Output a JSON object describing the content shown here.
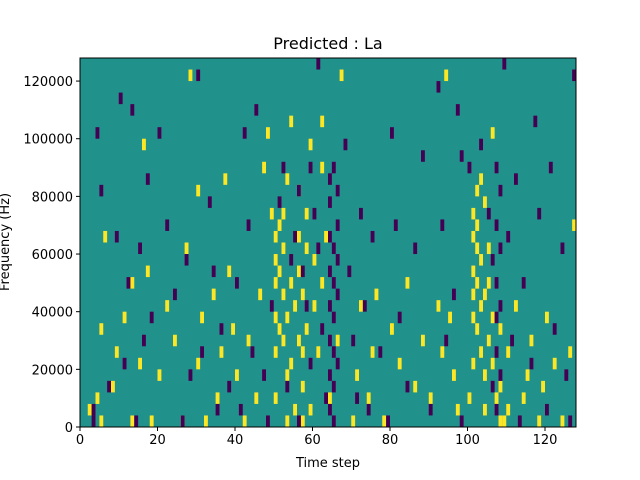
{
  "chart_data": {
    "type": "heatmap",
    "title": "Predicted : La",
    "xlabel": "Time step",
    "ylabel": "Frequency (Hz)",
    "xlim": [
      0,
      128
    ],
    "ylim": [
      0,
      128000
    ],
    "xticks": [
      0,
      20,
      40,
      60,
      80,
      100,
      120
    ],
    "xtick_labels": [
      "0",
      "20",
      "40",
      "60",
      "80",
      "100",
      "120"
    ],
    "yticks": [
      0,
      20000,
      40000,
      60000,
      80000,
      100000,
      120000
    ],
    "ytick_labels": [
      "0",
      "20000",
      "40000",
      "60000",
      "80000",
      "100000",
      "120000"
    ],
    "colormap": "viridis",
    "colors": {
      "background": "#21918c",
      "high": "#fde725",
      "low": "#440154"
    },
    "grid": false,
    "notes": "Three-level map: most cells mid-value (teal); sparse high (yellow) and low (purple) cells as sampled below.",
    "cell": {
      "dx": 1,
      "dy": 4000
    },
    "cells_high": [
      [
        2,
        4000
      ],
      [
        4,
        8000
      ],
      [
        5,
        0
      ],
      [
        5,
        32000
      ],
      [
        6,
        64000
      ],
      [
        8,
        12000
      ],
      [
        9,
        24000
      ],
      [
        11,
        36000
      ],
      [
        13,
        0
      ],
      [
        13,
        48000
      ],
      [
        15,
        20000
      ],
      [
        16,
        96000
      ],
      [
        17,
        52000
      ],
      [
        18,
        0
      ],
      [
        20,
        16000
      ],
      [
        22,
        40000
      ],
      [
        24,
        28000
      ],
      [
        26,
        0
      ],
      [
        27,
        60000
      ],
      [
        28,
        120000
      ],
      [
        30,
        20000
      ],
      [
        30,
        80000
      ],
      [
        31,
        36000
      ],
      [
        32,
        0
      ],
      [
        34,
        44000
      ],
      [
        35,
        8000
      ],
      [
        36,
        24000
      ],
      [
        37,
        84000
      ],
      [
        38,
        52000
      ],
      [
        39,
        32000
      ],
      [
        40,
        16000
      ],
      [
        42,
        0
      ],
      [
        43,
        28000
      ],
      [
        45,
        8000
      ],
      [
        46,
        44000
      ],
      [
        47,
        88000
      ],
      [
        48,
        100000
      ],
      [
        49,
        72000
      ],
      [
        50,
        8000
      ],
      [
        50,
        24000
      ],
      [
        50,
        36000
      ],
      [
        50,
        48000
      ],
      [
        50,
        56000
      ],
      [
        50,
        64000
      ],
      [
        51,
        68000
      ],
      [
        51,
        32000
      ],
      [
        51,
        52000
      ],
      [
        52,
        44000
      ],
      [
        52,
        60000
      ],
      [
        52,
        28000
      ],
      [
        52,
        72000
      ],
      [
        53,
        0
      ],
      [
        53,
        16000
      ],
      [
        53,
        36000
      ],
      [
        53,
        84000
      ],
      [
        54,
        104000
      ],
      [
        54,
        48000
      ],
      [
        54,
        20000
      ],
      [
        55,
        4000
      ],
      [
        55,
        40000
      ],
      [
        56,
        64000
      ],
      [
        56,
        52000
      ],
      [
        56,
        28000
      ],
      [
        56,
        80000
      ],
      [
        57,
        0
      ],
      [
        57,
        12000
      ],
      [
        57,
        24000
      ],
      [
        57,
        44000
      ],
      [
        58,
        60000
      ],
      [
        58,
        72000
      ],
      [
        58,
        32000
      ],
      [
        59,
        4000
      ],
      [
        59,
        96000
      ],
      [
        60,
        40000
      ],
      [
        60,
        56000
      ],
      [
        61,
        24000
      ],
      [
        62,
        104000
      ],
      [
        62,
        88000
      ],
      [
        62,
        48000
      ],
      [
        63,
        64000
      ],
      [
        64,
        8000
      ],
      [
        66,
        28000
      ],
      [
        67,
        120000
      ],
      [
        70,
        0
      ],
      [
        71,
        16000
      ],
      [
        72,
        40000
      ],
      [
        74,
        8000
      ],
      [
        75,
        24000
      ],
      [
        76,
        44000
      ],
      [
        78,
        0
      ],
      [
        80,
        32000
      ],
      [
        82,
        20000
      ],
      [
        84,
        48000
      ],
      [
        86,
        12000
      ],
      [
        88,
        28000
      ],
      [
        90,
        8000
      ],
      [
        92,
        40000
      ],
      [
        93,
        24000
      ],
      [
        94,
        120000
      ],
      [
        95,
        36000
      ],
      [
        96,
        16000
      ],
      [
        97,
        4000
      ],
      [
        100,
        8000
      ],
      [
        101,
        20000
      ],
      [
        101,
        36000
      ],
      [
        101,
        44000
      ],
      [
        101,
        52000
      ],
      [
        101,
        64000
      ],
      [
        101,
        72000
      ],
      [
        102,
        32000
      ],
      [
        102,
        48000
      ],
      [
        102,
        60000
      ],
      [
        102,
        68000
      ],
      [
        102,
        80000
      ],
      [
        103,
        24000
      ],
      [
        103,
        40000
      ],
      [
        103,
        56000
      ],
      [
        103,
        84000
      ],
      [
        104,
        4000
      ],
      [
        104,
        16000
      ],
      [
        104,
        44000
      ],
      [
        104,
        76000
      ],
      [
        105,
        28000
      ],
      [
        105,
        48000
      ],
      [
        105,
        60000
      ],
      [
        106,
        20000
      ],
      [
        106,
        36000
      ],
      [
        106,
        100000
      ],
      [
        107,
        8000
      ],
      [
        108,
        0
      ],
      [
        108,
        12000
      ],
      [
        108,
        32000
      ],
      [
        109,
        0
      ],
      [
        110,
        4000
      ],
      [
        110,
        24000
      ],
      [
        112,
        40000
      ],
      [
        114,
        8000
      ],
      [
        115,
        16000
      ],
      [
        116,
        28000
      ],
      [
        118,
        0
      ],
      [
        119,
        12000
      ],
      [
        120,
        36000
      ],
      [
        122,
        20000
      ],
      [
        124,
        0
      ],
      [
        126,
        24000
      ],
      [
        127,
        68000
      ],
      [
        128,
        16000
      ]
    ],
    "cells_low": [
      [
        3,
        0
      ],
      [
        3,
        4000
      ],
      [
        4,
        100000
      ],
      [
        5,
        80000
      ],
      [
        7,
        12000
      ],
      [
        9,
        64000
      ],
      [
        10,
        112000
      ],
      [
        11,
        20000
      ],
      [
        12,
        48000
      ],
      [
        13,
        108000
      ],
      [
        14,
        0
      ],
      [
        15,
        60000
      ],
      [
        16,
        28000
      ],
      [
        17,
        84000
      ],
      [
        18,
        36000
      ],
      [
        20,
        100000
      ],
      [
        22,
        68000
      ],
      [
        24,
        44000
      ],
      [
        26,
        0
      ],
      [
        27,
        56000
      ],
      [
        28,
        16000
      ],
      [
        30,
        120000
      ],
      [
        31,
        24000
      ],
      [
        33,
        76000
      ],
      [
        34,
        52000
      ],
      [
        35,
        4000
      ],
      [
        36,
        32000
      ],
      [
        38,
        12000
      ],
      [
        40,
        48000
      ],
      [
        41,
        4000
      ],
      [
        42,
        100000
      ],
      [
        43,
        68000
      ],
      [
        44,
        24000
      ],
      [
        45,
        108000
      ],
      [
        47,
        16000
      ],
      [
        48,
        0
      ],
      [
        49,
        40000
      ],
      [
        51,
        76000
      ],
      [
        52,
        88000
      ],
      [
        53,
        12000
      ],
      [
        54,
        56000
      ],
      [
        55,
        64000
      ],
      [
        56,
        80000
      ],
      [
        56,
        0
      ],
      [
        57,
        52000
      ],
      [
        58,
        40000
      ],
      [
        59,
        88000
      ],
      [
        59,
        20000
      ],
      [
        60,
        72000
      ],
      [
        61,
        60000
      ],
      [
        61,
        124000
      ],
      [
        62,
        32000
      ],
      [
        63,
        8000
      ],
      [
        64,
        84000
      ],
      [
        64,
        76000
      ],
      [
        64,
        64000
      ],
      [
        64,
        52000
      ],
      [
        64,
        40000
      ],
      [
        64,
        28000
      ],
      [
        64,
        16000
      ],
      [
        64,
        4000
      ],
      [
        65,
        88000
      ],
      [
        65,
        60000
      ],
      [
        65,
        48000
      ],
      [
        65,
        36000
      ],
      [
        65,
        24000
      ],
      [
        65,
        12000
      ],
      [
        65,
        0
      ],
      [
        66,
        80000
      ],
      [
        66,
        68000
      ],
      [
        66,
        56000
      ],
      [
        66,
        44000
      ],
      [
        66,
        20000
      ],
      [
        68,
        96000
      ],
      [
        69,
        52000
      ],
      [
        70,
        28000
      ],
      [
        71,
        8000
      ],
      [
        72,
        72000
      ],
      [
        73,
        40000
      ],
      [
        74,
        4000
      ],
      [
        75,
        64000
      ],
      [
        77,
        24000
      ],
      [
        79,
        0
      ],
      [
        80,
        100000
      ],
      [
        81,
        68000
      ],
      [
        82,
        36000
      ],
      [
        84,
        12000
      ],
      [
        86,
        60000
      ],
      [
        88,
        92000
      ],
      [
        90,
        4000
      ],
      [
        92,
        116000
      ],
      [
        93,
        68000
      ],
      [
        94,
        28000
      ],
      [
        96,
        44000
      ],
      [
        97,
        108000
      ],
      [
        98,
        0
      ],
      [
        98,
        92000
      ],
      [
        100,
        88000
      ],
      [
        103,
        96000
      ],
      [
        105,
        72000
      ],
      [
        106,
        56000
      ],
      [
        106,
        12000
      ],
      [
        107,
        88000
      ],
      [
        107,
        68000
      ],
      [
        107,
        48000
      ],
      [
        107,
        36000
      ],
      [
        107,
        24000
      ],
      [
        107,
        4000
      ],
      [
        108,
        80000
      ],
      [
        108,
        60000
      ],
      [
        108,
        40000
      ],
      [
        108,
        16000
      ],
      [
        109,
        124000
      ],
      [
        110,
        64000
      ],
      [
        111,
        28000
      ],
      [
        112,
        84000
      ],
      [
        113,
        0
      ],
      [
        114,
        48000
      ],
      [
        116,
        20000
      ],
      [
        117,
        104000
      ],
      [
        118,
        72000
      ],
      [
        120,
        4000
      ],
      [
        121,
        88000
      ],
      [
        122,
        32000
      ],
      [
        124,
        60000
      ],
      [
        125,
        16000
      ],
      [
        126,
        0
      ],
      [
        127,
        120000
      ]
    ]
  }
}
